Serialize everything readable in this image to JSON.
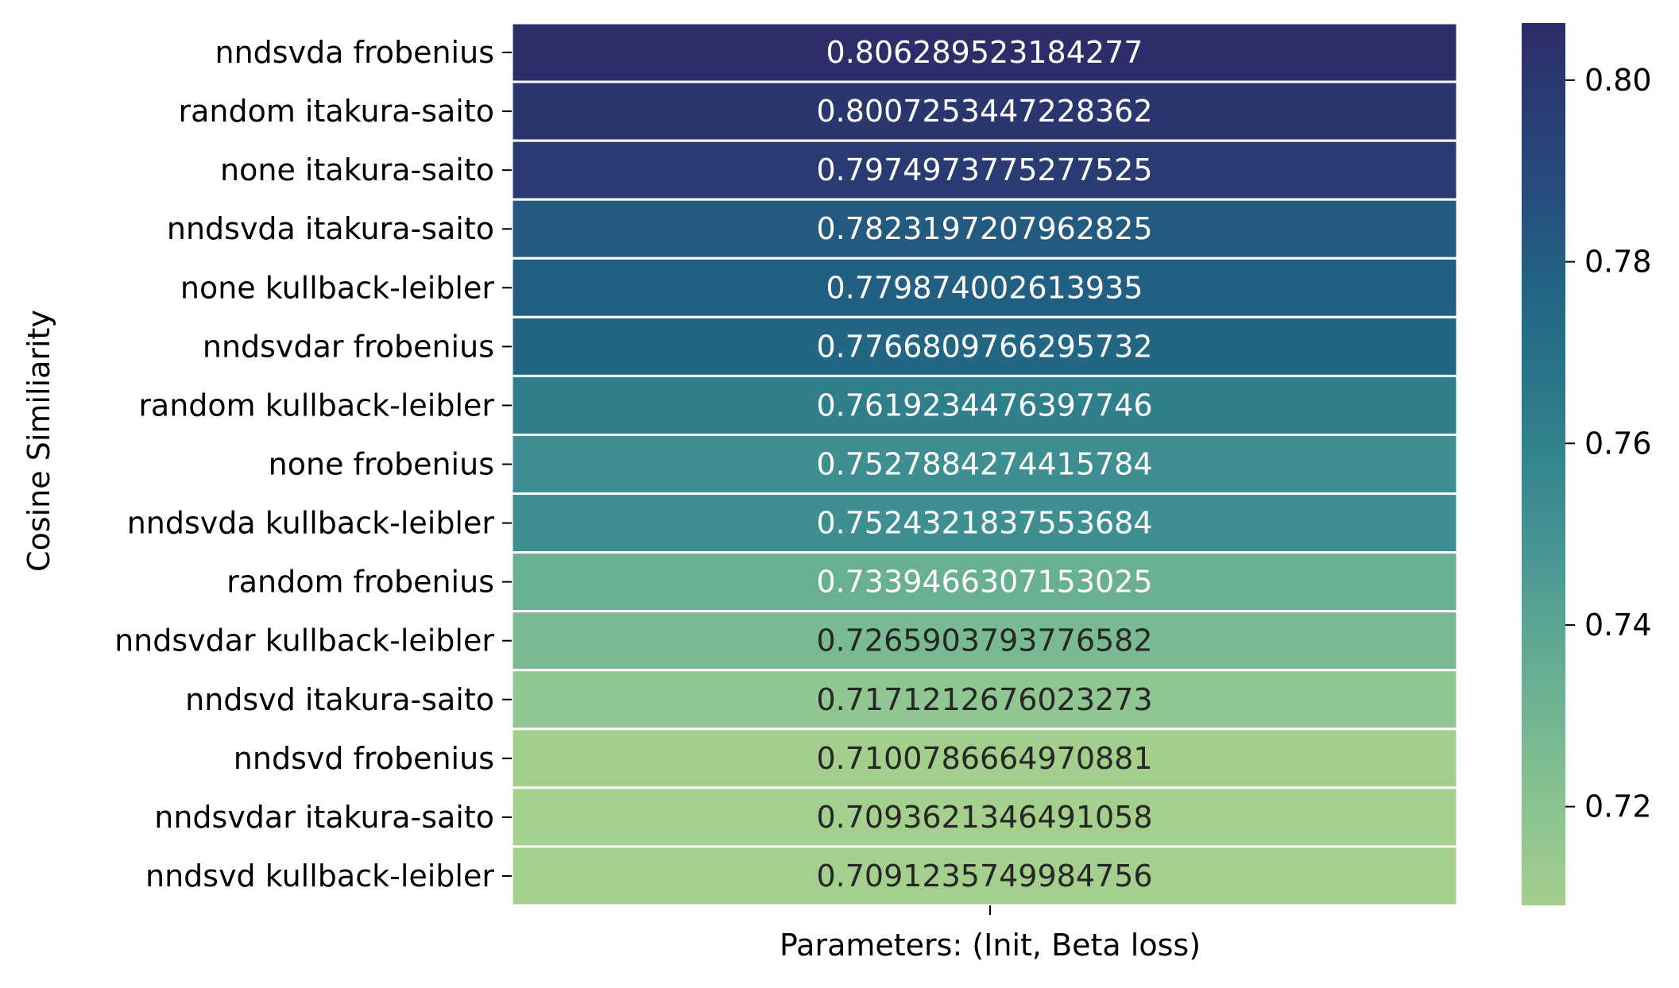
{
  "chart_data": {
    "type": "heatmap",
    "xlabel": "Parameters: (Init, Beta loss)",
    "ylabel": "Cosine Similiarity",
    "rows": [
      "nndsvda frobenius",
      "random itakura-saito",
      "none itakura-saito",
      "nndsvda itakura-saito",
      "none kullback-leibler",
      "nndsvdar frobenius",
      "random kullback-leibler",
      "none frobenius",
      "nndsvda kullback-leibler",
      "random frobenius",
      "nndsvdar kullback-leibler",
      "nndsvd itakura-saito",
      "nndsvd frobenius",
      "nndsvdar itakura-saito",
      "nndsvd kullback-leibler"
    ],
    "columns": [
      ""
    ],
    "values": [
      0.806289523184277,
      0.8007253447228362,
      0.7974973775277525,
      0.7823197207962825,
      0.779874002613935,
      0.7766809766295732,
      0.7619234476397746,
      0.7527884274415784,
      0.7524321837553684,
      0.7339466307153025,
      0.7265903793776582,
      0.7171212676023273,
      0.7100786664970881,
      0.7093621346491058,
      0.7091235749984756
    ],
    "value_labels": [
      "0.806289523184277",
      "0.8007253447228362",
      "0.7974973775277525",
      "0.7823197207962825",
      "0.779874002613935",
      "0.7766809766295732",
      "0.7619234476397746",
      "0.7527884274415784",
      "0.7524321837553684",
      "0.7339466307153025",
      "0.7265903793776582",
      "0.7171212676023273",
      "0.7100786664970881",
      "0.7093621346491058",
      "0.7091235749984756"
    ],
    "colorbar": {
      "range": [
        0.7091235749984756,
        0.806289523184277
      ],
      "ticks": [
        0.72,
        0.74,
        0.76,
        0.78,
        0.8
      ],
      "tick_labels": [
        "0.72",
        "0.74",
        "0.76",
        "0.78",
        "0.80"
      ],
      "colormap": "crest",
      "colors": [
        "#a5cf8c",
        "#8cc490",
        "#76b792",
        "#5ea893",
        "#479693",
        "#348690",
        "#287589",
        "#226583",
        "#264e7e",
        "#2a3d74",
        "#2c2d69"
      ]
    }
  }
}
